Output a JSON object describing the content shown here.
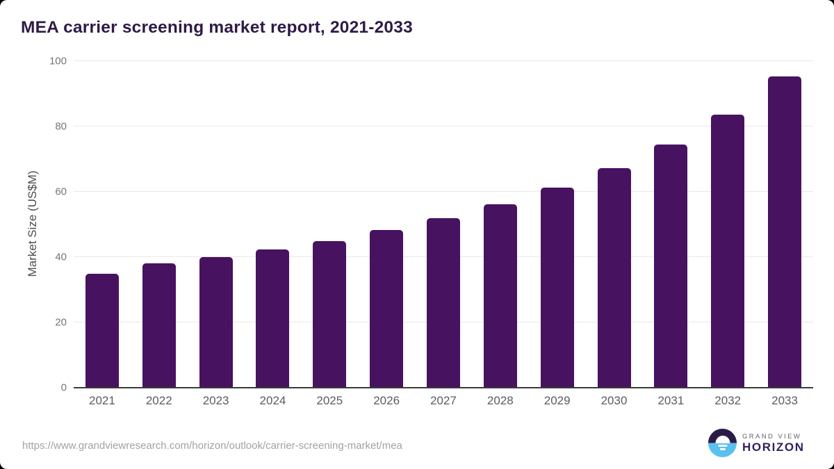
{
  "title": "MEA carrier screening market report, 2021-2033",
  "chart_data": {
    "type": "bar",
    "categories": [
      "2021",
      "2022",
      "2023",
      "2024",
      "2025",
      "2026",
      "2027",
      "2028",
      "2029",
      "2030",
      "2031",
      "2032",
      "2033"
    ],
    "values": [
      34.9,
      38.1,
      40.0,
      42.4,
      45.0,
      48.4,
      52.0,
      56.1,
      61.2,
      67.3,
      74.5,
      83.7,
      95.3
    ],
    "title": "MEA carrier screening market report, 2021-2033",
    "xlabel": "",
    "ylabel": "Market Size (US$M)",
    "ylim": [
      0,
      100
    ],
    "yticks": [
      0,
      20,
      40,
      60,
      80,
      100
    ],
    "grid": "horizontal",
    "legend": "none"
  },
  "footer": {
    "source_url": "https://www.grandviewresearch.com/horizon/outlook/carrier-screening-market/mea",
    "logo": {
      "line1": "GRAND VIEW",
      "line2": "HORIZON"
    }
  },
  "colors": {
    "title": "#2e1a47",
    "bar": "#471260",
    "grid": "#e8e8e8",
    "axis": "#3a3a3a",
    "tick_label": "#757575",
    "url": "#a2a2a2",
    "logo_navy": "#2b1b47",
    "logo_blue": "#5ac1ee",
    "logo_gray": "#63606f",
    "logo_purple": "#33215c"
  }
}
